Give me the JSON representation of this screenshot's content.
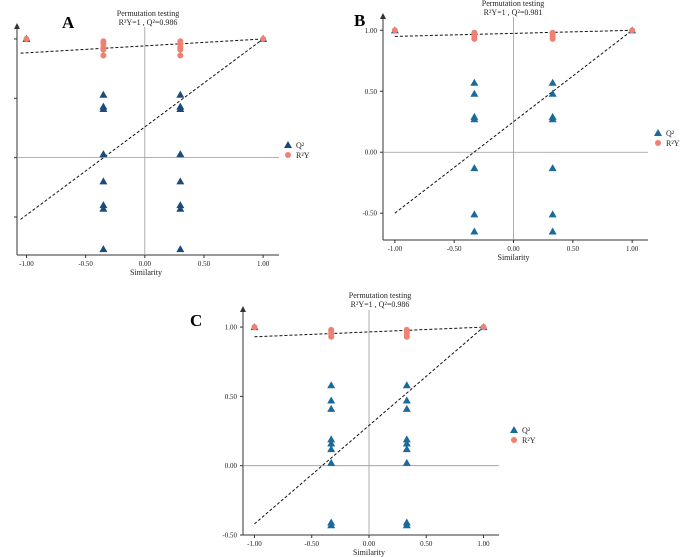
{
  "chart_data": [
    {
      "type": "scatter",
      "panel_label": "A",
      "title": "Permutation testing",
      "subtitle": "R²Y=1 , Q²=0.986",
      "xlabel": "Similarity",
      "xticks": [
        "-1.00",
        "-0.50",
        "0.00",
        "0.50",
        "1.00"
      ],
      "yticks": [],
      "xlim": [
        -1.08,
        1.1
      ],
      "ylim": [
        -0.82,
        1.05
      ],
      "legend": [
        "Q²",
        "R²Y"
      ],
      "series": [
        {
          "name": "R²Y",
          "marker": "circle",
          "color": "#f08070",
          "x": [
            -1.0,
            -0.35,
            -0.35,
            -0.35,
            -0.35,
            -0.35,
            0.3,
            0.3,
            0.3,
            0.3,
            0.3,
            1.0
          ],
          "y": [
            1.0,
            0.98,
            0.96,
            0.93,
            0.91,
            0.86,
            0.98,
            0.96,
            0.93,
            0.91,
            0.86,
            1.0
          ]
        },
        {
          "name": "Q²",
          "marker": "triangle",
          "color": "#1b4b7a",
          "x": [
            -1.0,
            -0.35,
            -0.35,
            -0.35,
            -0.35,
            -0.35,
            -0.35,
            -0.35,
            -0.35,
            0.3,
            0.3,
            0.3,
            0.3,
            0.3,
            0.3,
            0.3,
            0.3,
            1.0
          ],
          "y": [
            1.0,
            0.53,
            0.43,
            0.41,
            0.03,
            -0.2,
            -0.4,
            -0.43,
            -0.77,
            0.53,
            0.43,
            0.41,
            0.03,
            -0.2,
            -0.4,
            -0.43,
            -0.77,
            1.0
          ]
        }
      ],
      "regression_lines": [
        {
          "series": "R²Y",
          "x": [
            -1.05,
            1.0
          ],
          "y": [
            0.88,
            1.0
          ]
        },
        {
          "series": "Q²",
          "x": [
            -1.05,
            1.0
          ],
          "y": [
            -0.52,
            1.0
          ]
        }
      ]
    },
    {
      "type": "scatter",
      "panel_label": "B",
      "title": "Permutation testing",
      "subtitle": "R²Y=1 , Q²=0.981",
      "xlabel": "Similarity",
      "xticks": [
        "-1.00",
        "-0.50",
        "0.00",
        "0.50",
        "1.00"
      ],
      "yticks": [
        "1.00",
        "0.50",
        "0.00",
        "-0.50"
      ],
      "xlim": [
        -1.1,
        1.1
      ],
      "ylim": [
        -0.72,
        1.06
      ],
      "legend": [
        "Q²",
        "R²Y"
      ],
      "series": [
        {
          "name": "R²Y",
          "marker": "circle",
          "color": "#f08070",
          "x": [
            -1.0,
            -0.33,
            -0.33,
            -0.33,
            -0.33,
            0.33,
            0.33,
            0.33,
            0.33,
            1.0
          ],
          "y": [
            1.0,
            0.98,
            0.97,
            0.95,
            0.93,
            0.98,
            0.97,
            0.95,
            0.93,
            1.0
          ]
        },
        {
          "name": "Q²",
          "marker": "triangle",
          "color": "#1a6a9a",
          "x": [
            -1.0,
            -0.33,
            -0.33,
            -0.33,
            -0.33,
            -0.33,
            -0.33,
            -0.33,
            0.33,
            0.33,
            0.33,
            0.33,
            0.33,
            0.33,
            0.33,
            1.0
          ],
          "y": [
            1.0,
            0.57,
            0.48,
            0.29,
            0.27,
            -0.13,
            -0.51,
            -0.65,
            0.57,
            0.48,
            0.29,
            0.27,
            -0.13,
            -0.51,
            -0.65,
            1.0
          ]
        }
      ],
      "regression_lines": [
        {
          "series": "R²Y",
          "x": [
            -1.0,
            1.0
          ],
          "y": [
            0.95,
            1.0
          ]
        },
        {
          "series": "Q²",
          "x": [
            -1.0,
            1.0
          ],
          "y": [
            -0.5,
            1.0
          ]
        }
      ]
    },
    {
      "type": "scatter",
      "panel_label": "C",
      "title": "Permutation testing",
      "subtitle": "R²Y=1 , Q²=0.986",
      "xlabel": "Similarity",
      "xticks": [
        "-1.00",
        "-0.50",
        "0.00",
        "0.50",
        "1.00"
      ],
      "yticks": [
        "1.00",
        "0.50",
        "0.00",
        "-0.50"
      ],
      "xlim": [
        -1.1,
        1.1
      ],
      "ylim": [
        -0.5,
        1.08
      ],
      "legend": [
        "Q²",
        "R²Y"
      ],
      "series": [
        {
          "name": "R²Y",
          "marker": "circle",
          "color": "#f08070",
          "x": [
            -1.0,
            -0.33,
            -0.33,
            -0.33,
            -0.33,
            0.33,
            0.33,
            0.33,
            0.33,
            1.0
          ],
          "y": [
            1.0,
            0.98,
            0.97,
            0.95,
            0.93,
            0.98,
            0.97,
            0.95,
            0.93,
            1.0
          ]
        },
        {
          "name": "Q²",
          "marker": "triangle",
          "color": "#1a6a9a",
          "x": [
            -1.0,
            -0.33,
            -0.33,
            -0.33,
            -0.33,
            -0.33,
            -0.33,
            -0.33,
            -0.33,
            -0.33,
            0.33,
            0.33,
            0.33,
            0.33,
            0.33,
            0.33,
            0.33,
            0.33,
            0.33,
            1.0
          ],
          "y": [
            1.0,
            0.58,
            0.47,
            0.41,
            0.19,
            0.16,
            0.12,
            0.02,
            -0.41,
            -0.43,
            0.58,
            0.47,
            0.41,
            0.19,
            0.16,
            0.12,
            0.02,
            -0.41,
            -0.43,
            1.0
          ]
        }
      ],
      "regression_lines": [
        {
          "series": "R²Y",
          "x": [
            -1.0,
            1.0
          ],
          "y": [
            0.93,
            1.0
          ]
        },
        {
          "series": "Q²",
          "x": [
            -1.0,
            1.0
          ],
          "y": [
            -0.42,
            1.0
          ]
        }
      ]
    }
  ]
}
